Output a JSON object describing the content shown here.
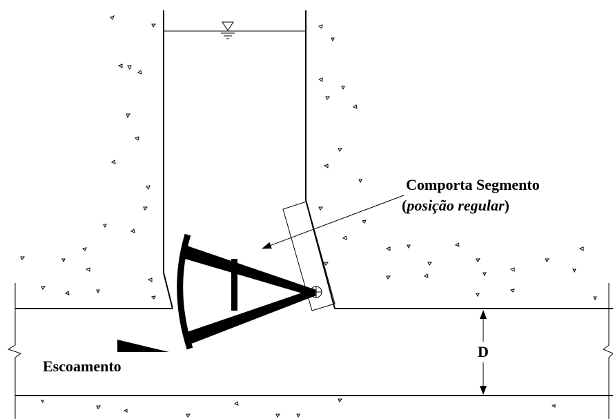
{
  "gate_label": {
    "line1": "Comporta Segmento",
    "line2": [
      "(",
      "posição regular",
      ")"
    ]
  },
  "flow_label": "Escoamento",
  "dimension_label": "D"
}
